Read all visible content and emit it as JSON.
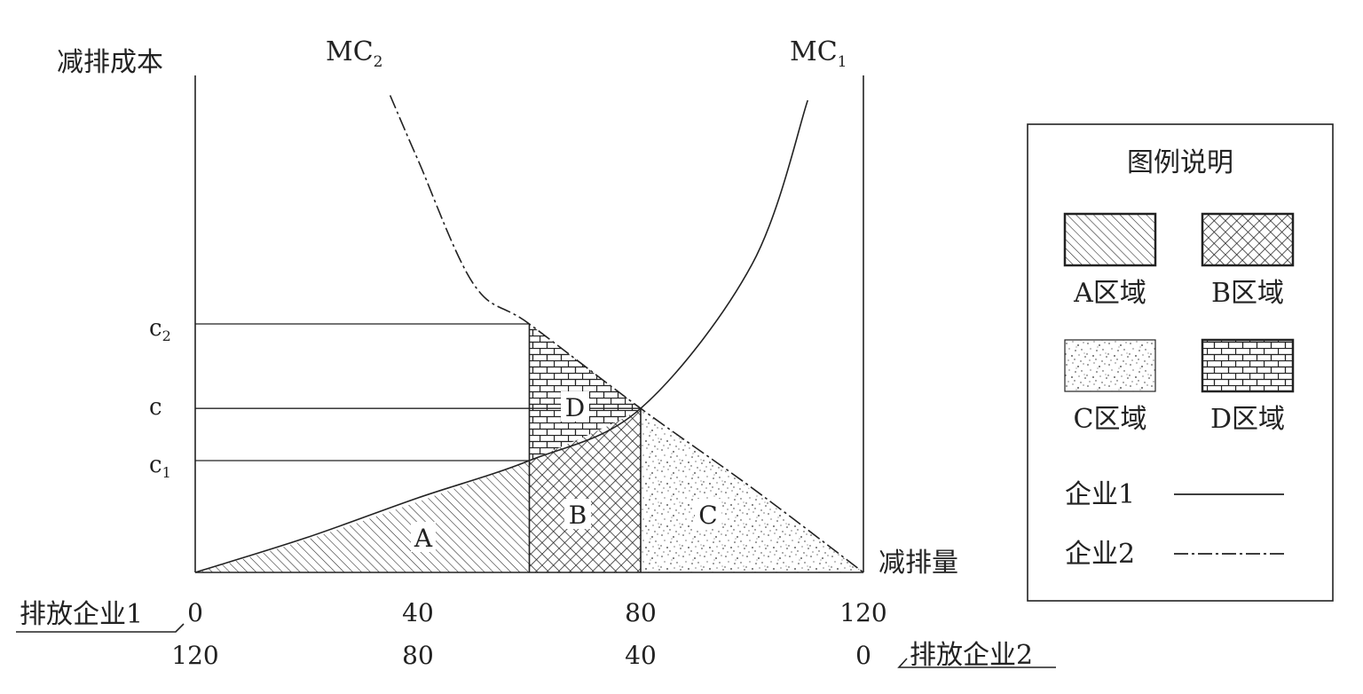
{
  "chart_data": {
    "type": "area",
    "y_axis_label": "减排成本",
    "x_axis_label": "减排量",
    "x_ticks_firm1": [
      "0",
      "40",
      "80",
      "120"
    ],
    "x_ticks_firm2": [
      "120",
      "80",
      "40",
      "0"
    ],
    "x_tick_values": [
      0,
      40,
      80,
      120
    ],
    "firm1_axis_label": "排放企业1",
    "firm2_axis_label": "排放企业2",
    "xlim": [
      0,
      120
    ],
    "curves": [
      {
        "name": "MC1",
        "label_main": "MC",
        "label_sub": "1",
        "style": "solid",
        "points": [
          [
            0,
            0
          ],
          [
            20,
            0.07
          ],
          [
            40,
            0.15
          ],
          [
            60,
            0.225
          ],
          [
            80,
            0.33
          ],
          [
            100,
            0.62
          ],
          [
            110,
            0.95
          ]
        ]
      },
      {
        "name": "MC2",
        "label_main": "MC",
        "label_sub": "2",
        "style": "dash-dot",
        "points": [
          [
            35,
            0.96
          ],
          [
            40,
            0.83
          ],
          [
            50,
            0.58
          ],
          [
            60,
            0.5
          ],
          [
            80,
            0.33
          ],
          [
            100,
            0.17
          ],
          [
            120,
            0
          ]
        ]
      }
    ],
    "levels": [
      {
        "main": "c",
        "sub": "2",
        "value": 0.5
      },
      {
        "main": "c",
        "sub": "",
        "value": 0.33
      },
      {
        "main": "c",
        "sub": "1",
        "value": 0.225
      }
    ],
    "regions": [
      {
        "label": "A",
        "pattern": "diagonal-hatch"
      },
      {
        "label": "B",
        "pattern": "cross-hatch"
      },
      {
        "label": "C",
        "pattern": "stipple"
      },
      {
        "label": "D",
        "pattern": "brick"
      }
    ]
  },
  "legend": {
    "title": "图例说明",
    "items": [
      {
        "label": "A区域",
        "pattern": "diagonal-hatch"
      },
      {
        "label": "B区域",
        "pattern": "cross-hatch"
      },
      {
        "label": "C区域",
        "pattern": "stipple"
      },
      {
        "label": "D区域",
        "pattern": "brick"
      }
    ],
    "lines": [
      {
        "label": "企业1",
        "style": "solid"
      },
      {
        "label": "企业2",
        "style": "dash-dot"
      }
    ]
  }
}
